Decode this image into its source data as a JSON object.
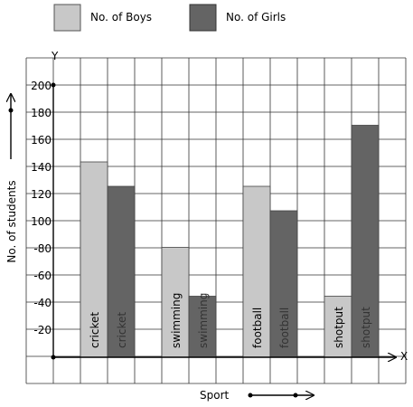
{
  "chart_data": {
    "type": "bar",
    "categories": [
      "cricket",
      "swimming",
      "football",
      "shotput"
    ],
    "series": [
      {
        "name": "No. of Boys",
        "color": "#c8c8c8",
        "values": [
          144,
          81,
          126,
          45
        ]
      },
      {
        "name": "No. of Girls",
        "color": "#646464",
        "values": [
          126,
          45,
          108,
          171
        ]
      }
    ],
    "xlabel": "Sport",
    "ylabel": "No. of students",
    "x_axis_letter": "X",
    "y_axis_letter": "Y",
    "ylim": [
      0,
      220
    ],
    "yticks": [
      {
        "value": 20,
        "label": "-20"
      },
      {
        "value": 40,
        "label": "-40"
      },
      {
        "value": 60,
        "label": "-60"
      },
      {
        "value": 80,
        "label": "-80"
      },
      {
        "value": 100,
        "label": "100"
      },
      {
        "value": 120,
        "label": "120"
      },
      {
        "value": 140,
        "label": "140"
      },
      {
        "value": 160,
        "label": "160"
      },
      {
        "value": 180,
        "label": "180"
      },
      {
        "value": 200,
        "label": "200"
      }
    ],
    "grid": true,
    "legend_position": "top"
  }
}
